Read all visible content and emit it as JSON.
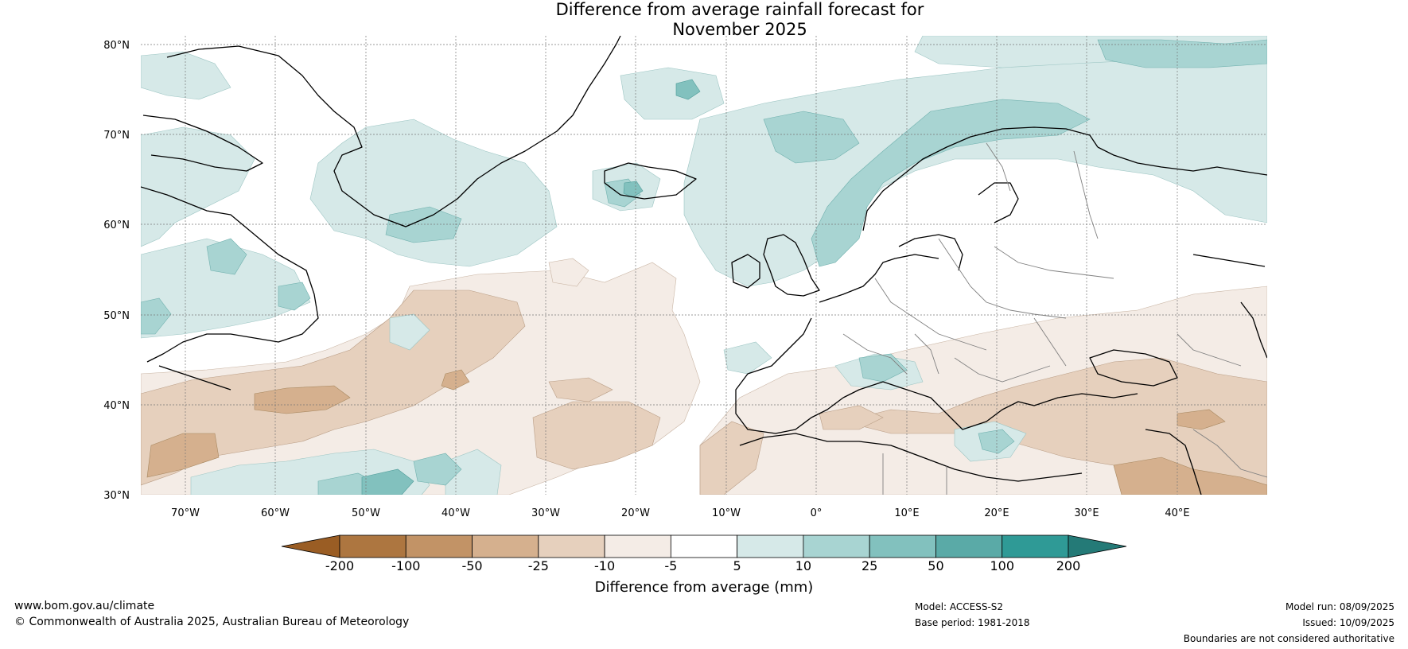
{
  "title": {
    "line1": "Difference from average rainfall forecast for",
    "line2": "November 2025"
  },
  "map": {
    "lat_labels": [
      "80°N",
      "70°N",
      "60°N",
      "50°N",
      "40°N",
      "30°N"
    ],
    "lon_labels": [
      "70°W",
      "60°W",
      "50°W",
      "40°W",
      "30°W",
      "20°W",
      "10°W",
      "0°",
      "10°E",
      "20°E",
      "30°E",
      "40°E"
    ],
    "lat_range": [
      30,
      80
    ],
    "lon_range": [
      -75,
      50
    ]
  },
  "colorbar": {
    "ticks": [
      "-200",
      "-100",
      "-50",
      "-25",
      "-10",
      "-5",
      "5",
      "10",
      "25",
      "50",
      "100",
      "200"
    ],
    "colors": [
      "#ad7640",
      "#c29366",
      "#d5b08e",
      "#e6d0bd",
      "#f4ece6",
      "#ffffff",
      "#d6e9e8",
      "#a8d4d2",
      "#82c1be",
      "#5aaaa7",
      "#2f9a96"
    ],
    "under_color": "#9a5d24",
    "over_color": "#247a77",
    "label": "Difference from average (mm)"
  },
  "footer": {
    "website": "www.bom.gov.au/climate",
    "copyright": "© Commonwealth of Australia 2025, Australian Bureau of Meteorology",
    "model": "Model: ACCESS-S2",
    "base_period": "Base period: 1981-2018",
    "model_run": "Model run: 08/09/2025",
    "issued": "Issued: 10/09/2025",
    "disclaimer": "Boundaries are not considered authoritative"
  }
}
